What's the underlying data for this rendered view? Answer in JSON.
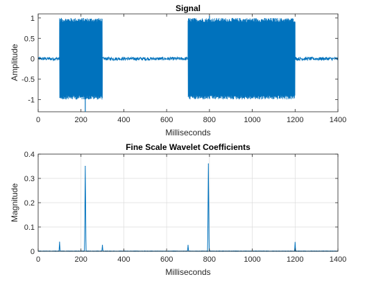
{
  "chart_data": [
    {
      "type": "line",
      "title": "Signal",
      "xlabel": "Milliseconds",
      "ylabel": "Amplitude",
      "xlim": [
        0,
        1400
      ],
      "ylim": [
        -1.3,
        1.1
      ],
      "xticks": [
        "0",
        "200",
        "400",
        "600",
        "800",
        "1000",
        "1200",
        "1400"
      ],
      "yticks": [
        "-1",
        "-0.5",
        "0",
        "0.5",
        "1"
      ],
      "grid": false,
      "line_color": "#0072BD",
      "segments": [
        {
          "kind": "noise",
          "x_start": 0,
          "x_end": 100,
          "amplitude": 0.04
        },
        {
          "kind": "oscillation",
          "x_start": 100,
          "x_end": 300,
          "amplitude": 1.0
        },
        {
          "kind": "noise",
          "x_start": 300,
          "x_end": 700,
          "amplitude": 0.04
        },
        {
          "kind": "oscillation",
          "x_start": 700,
          "x_end": 1200,
          "amplitude": 1.0
        },
        {
          "kind": "noise",
          "x_start": 1200,
          "x_end": 1400,
          "amplitude": 0.04
        }
      ],
      "spikes": [
        {
          "x": 220,
          "y": -1.3
        },
        {
          "x": 800,
          "y": 1.05
        }
      ]
    },
    {
      "type": "line",
      "title": "Fine Scale Wavelet Coefficients",
      "xlabel": "Milliseconds",
      "ylabel": "Magnitude",
      "xlim": [
        0,
        1400
      ],
      "ylim": [
        0,
        0.4
      ],
      "xticks": [
        "0",
        "200",
        "400",
        "600",
        "800",
        "1000",
        "1200",
        "1400"
      ],
      "yticks": [
        "0",
        "0.1",
        "0.2",
        "0.3",
        "0.4"
      ],
      "grid": true,
      "line_color": "#0072BD",
      "peaks": [
        {
          "x": 100,
          "y": 0.038
        },
        {
          "x": 220,
          "y": 0.35
        },
        {
          "x": 300,
          "y": 0.025
        },
        {
          "x": 700,
          "y": 0.025
        },
        {
          "x": 795,
          "y": 0.36
        },
        {
          "x": 1200,
          "y": 0.037
        }
      ]
    }
  ]
}
